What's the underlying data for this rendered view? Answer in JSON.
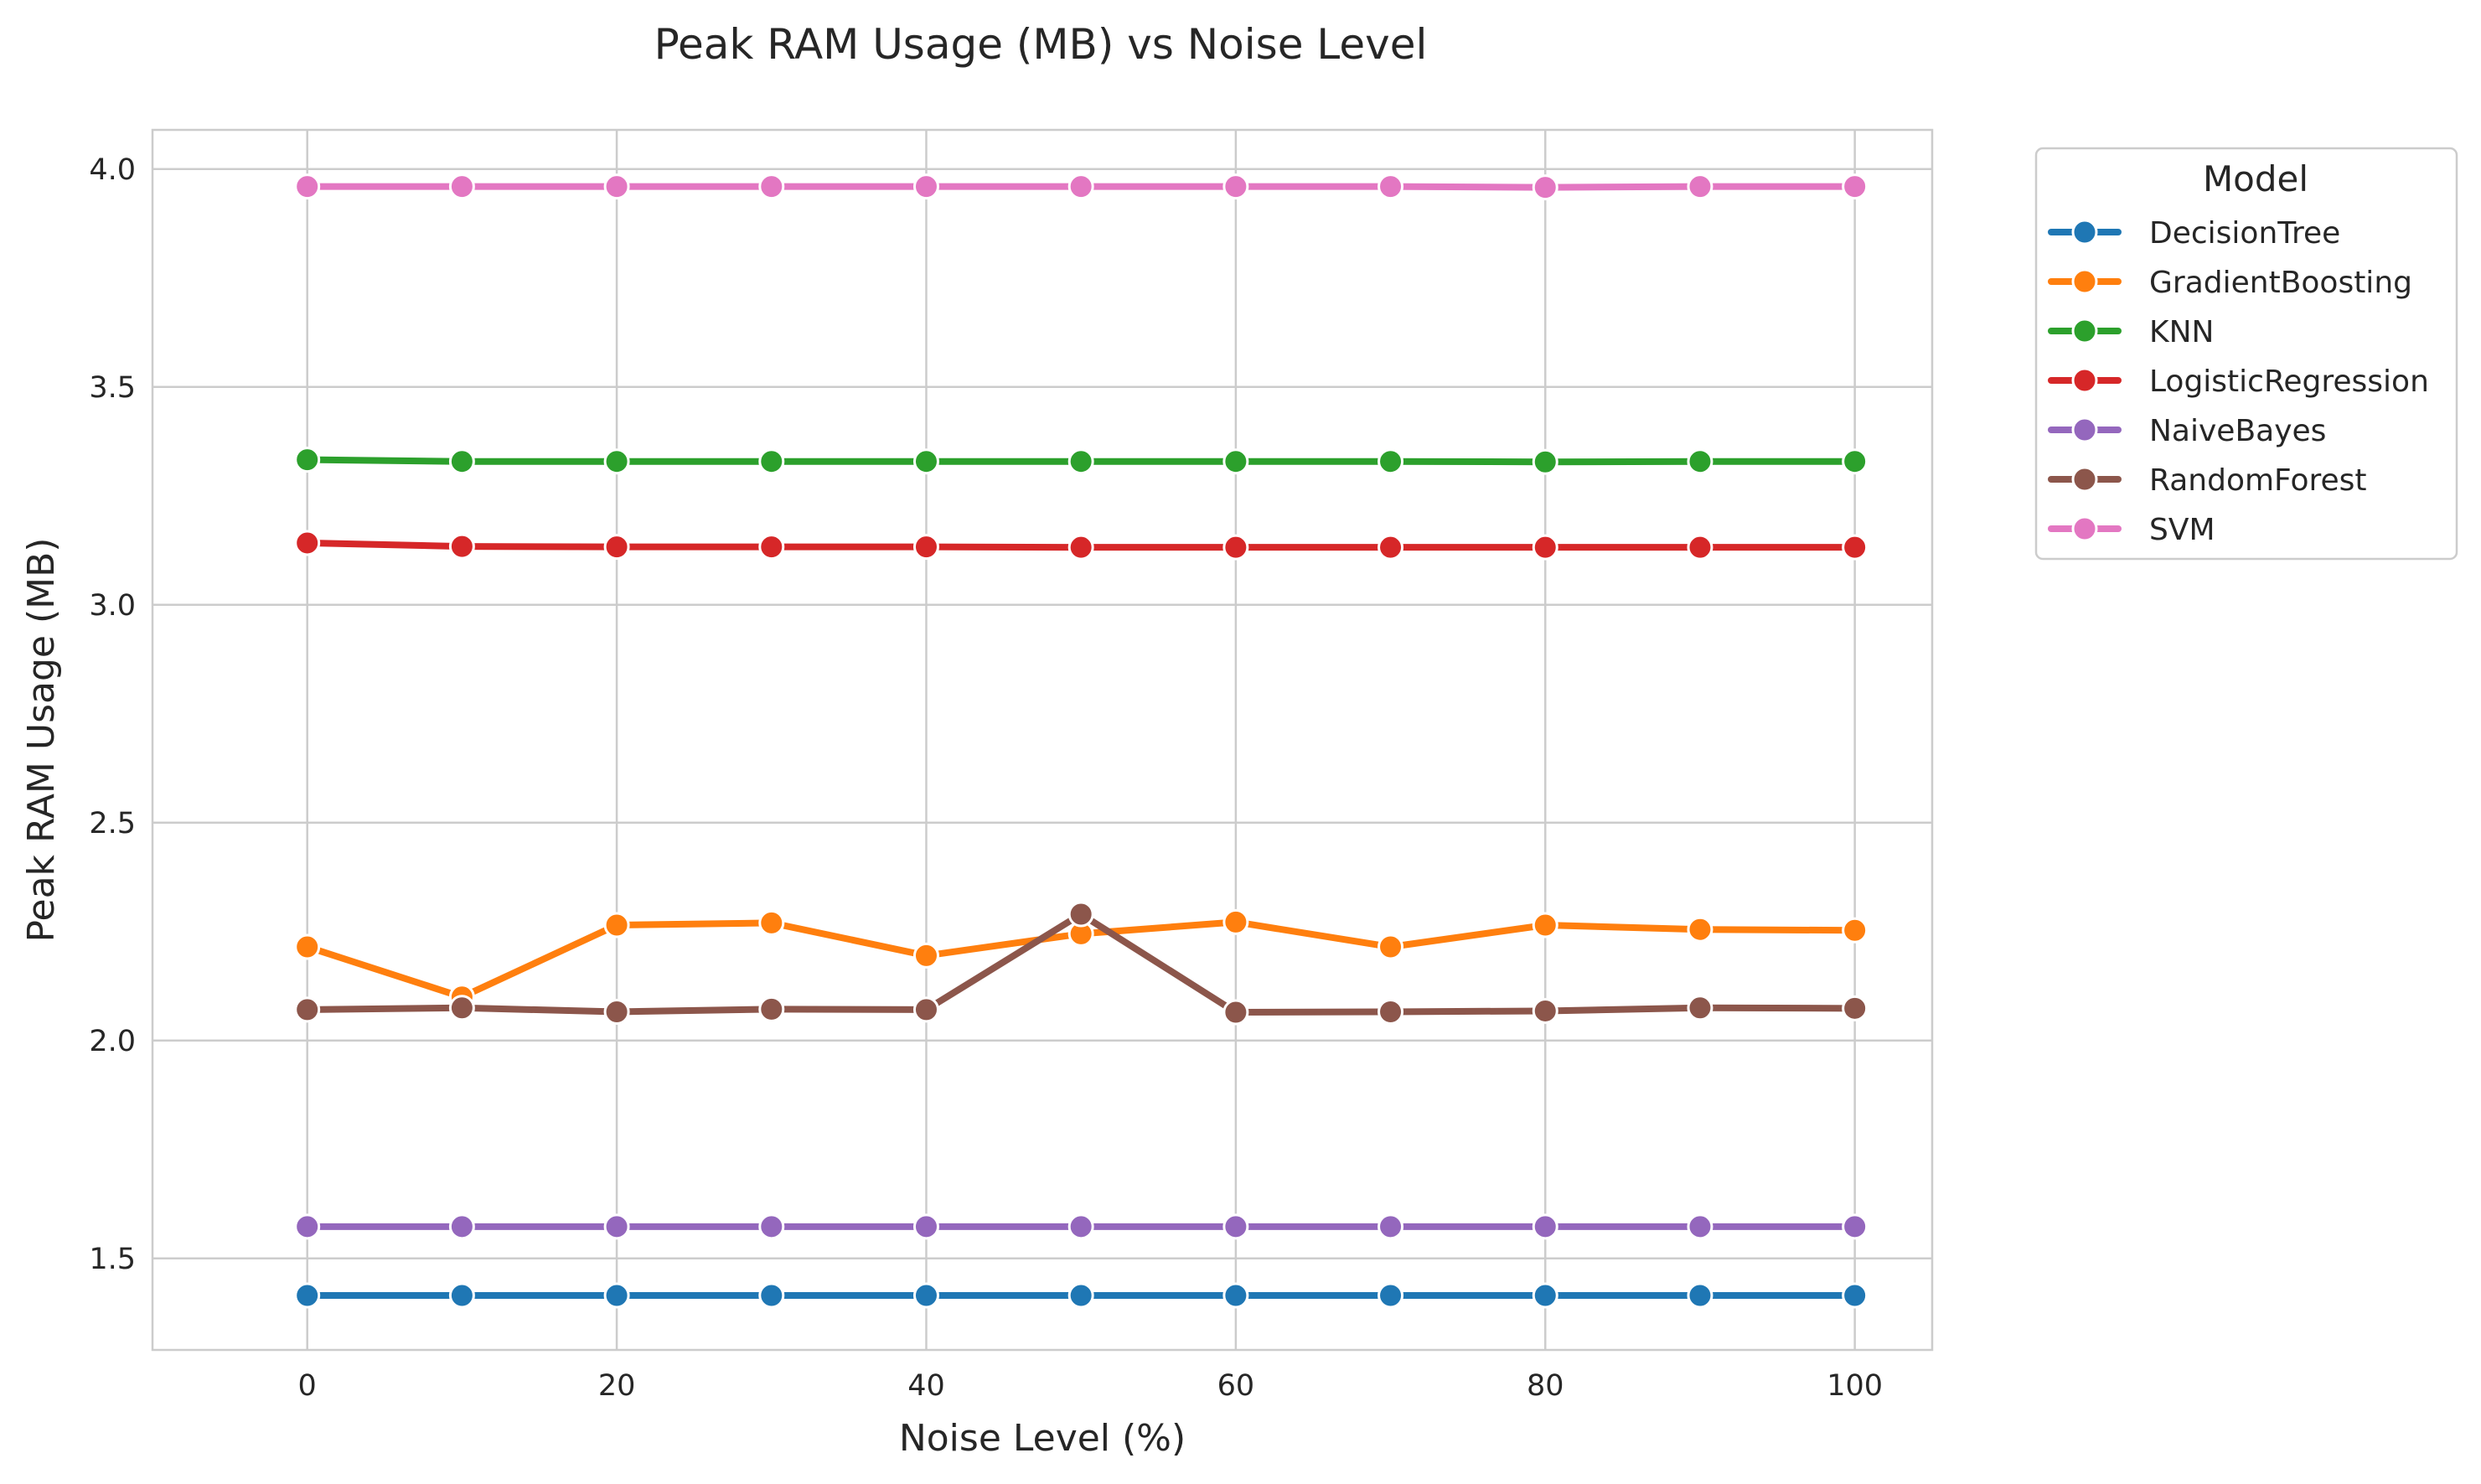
{
  "chart_data": {
    "type": "line",
    "title": "Peak RAM Usage (MB) vs Noise Level",
    "xlabel": "Noise Level (%)",
    "ylabel": "Peak RAM Usage (MB)",
    "xlim": [
      -10,
      105
    ],
    "ylim": [
      1.29,
      4.09
    ],
    "xticks": [
      0,
      20,
      40,
      60,
      80,
      100
    ],
    "xtick_labels": [
      "0",
      "20",
      "40",
      "60",
      "80",
      "100"
    ],
    "yticks": [
      1.5,
      2.0,
      2.5,
      3.0,
      3.5,
      4.0
    ],
    "ytick_labels": [
      "1.5",
      "2.0",
      "2.5",
      "3.0",
      "3.5",
      "4.0"
    ],
    "grid": true,
    "legend_title": "Model",
    "legend_position": "outside-right",
    "x": [
      0,
      10,
      20,
      30,
      40,
      50,
      60,
      70,
      80,
      90,
      100
    ],
    "series": [
      {
        "name": "DecisionTree",
        "color": "#1f77b4",
        "values": [
          1.415,
          1.415,
          1.415,
          1.415,
          1.415,
          1.415,
          1.415,
          1.415,
          1.415,
          1.415,
          1.415
        ]
      },
      {
        "name": "GradientBoosting",
        "color": "#ff7f0e",
        "values": [
          2.215,
          2.1,
          2.265,
          2.27,
          2.195,
          2.245,
          2.272,
          2.215,
          2.265,
          2.255,
          2.253
        ]
      },
      {
        "name": "KNN",
        "color": "#2ca02c",
        "values": [
          3.333,
          3.329,
          3.329,
          3.329,
          3.329,
          3.329,
          3.329,
          3.329,
          3.328,
          3.329,
          3.329
        ]
      },
      {
        "name": "LogisticRegression",
        "color": "#d62728",
        "values": [
          3.142,
          3.134,
          3.133,
          3.133,
          3.133,
          3.132,
          3.132,
          3.132,
          3.132,
          3.132,
          3.132
        ]
      },
      {
        "name": "NaiveBayes",
        "color": "#9467bd",
        "values": [
          1.573,
          1.573,
          1.573,
          1.573,
          1.573,
          1.573,
          1.573,
          1.573,
          1.573,
          1.573,
          1.573
        ]
      },
      {
        "name": "RandomForest",
        "color": "#8c564b",
        "values": [
          2.071,
          2.075,
          2.066,
          2.072,
          2.071,
          2.29,
          2.065,
          2.066,
          2.068,
          2.075,
          2.074
        ]
      },
      {
        "name": "SVM",
        "color": "#e377c2",
        "values": [
          3.96,
          3.96,
          3.96,
          3.96,
          3.96,
          3.96,
          3.96,
          3.96,
          3.958,
          3.96,
          3.96
        ]
      }
    ]
  }
}
